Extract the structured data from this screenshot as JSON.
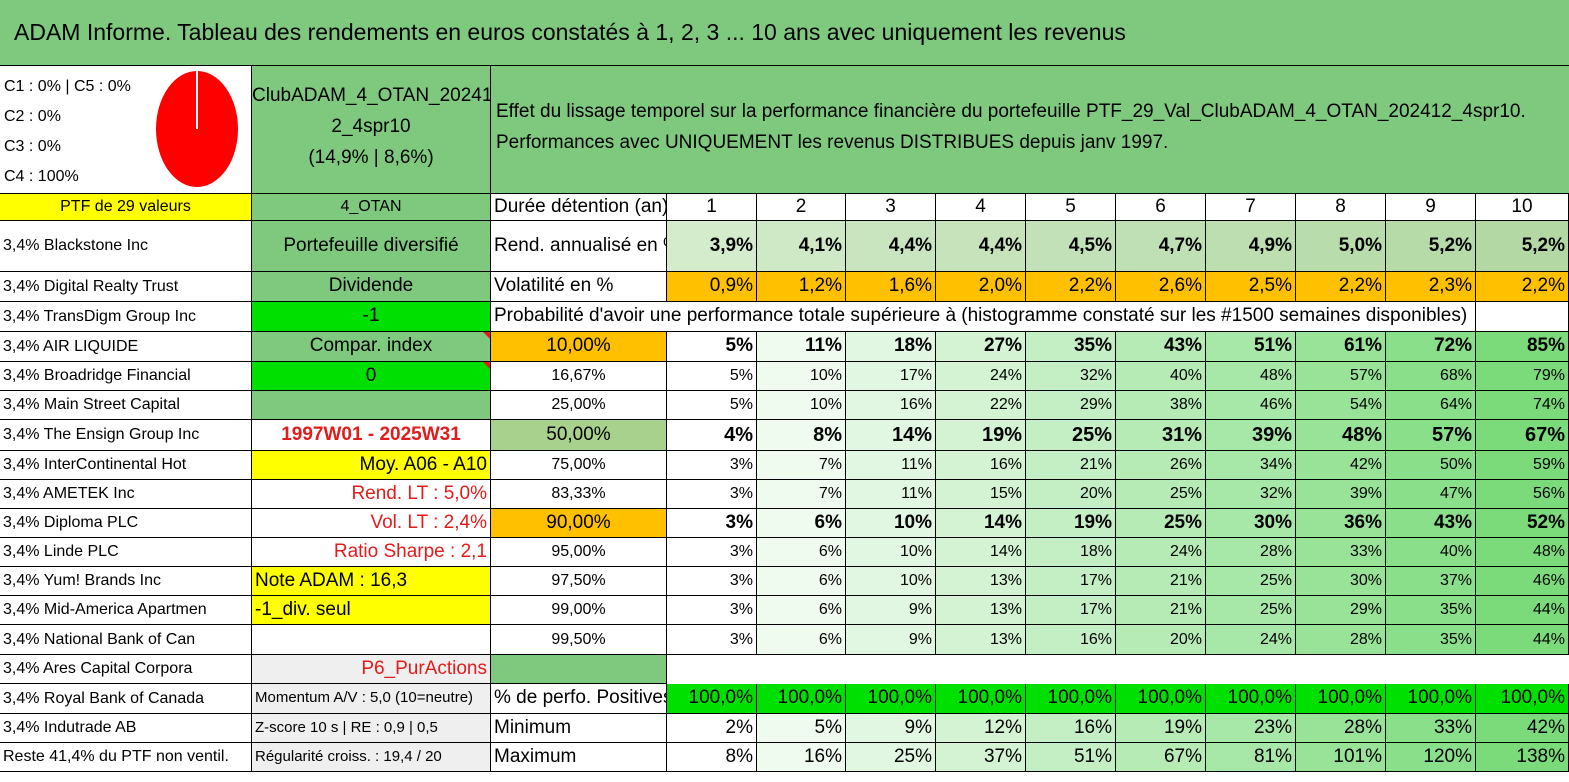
{
  "title": "ADAM Informe. Tableau des rendements en euros constatés à 1, 2, 3 ... 10 ans avec uniquement les revenus",
  "categories": [
    "C1 : 0% | C5 : 0%",
    "C2 : 0%",
    "C3 : 0%",
    "C4 : 100%"
  ],
  "pie": {
    "color": "#ff0000",
    "share_c4": 1.0
  },
  "portfolio": {
    "name_line1": "ClubADAM_4_OTAN_20241",
    "name_line2": "2_4spr10",
    "perf": "(14,9% | 8,6%)"
  },
  "description": {
    "line1": "Effet du lissage temporel sur la performance financière du portefeuille PTF_29_Val_ClubADAM_4_OTAN_202412_4spr10.",
    "line2": "Performances avec UNIQUEMENT les revenus DISTRIBUES depuis janv 1997."
  },
  "left_header": "PTF de 29 valeurs",
  "holdings": [
    "3,4% Blackstone Inc",
    "3,4% Digital Realty Trust",
    "3,4% TransDigm Group Inc",
    "3,4% AIR LIQUIDE",
    "3,4% Broadridge Financial",
    "3,4% Main Street Capital",
    "3,4% The Ensign Group Inc",
    "3,4% InterContinental Hot",
    "3,4% AMETEK Inc",
    "3,4% Diploma PLC",
    "3,4% Linde PLC",
    "3,4% Yum! Brands Inc",
    "3,4% Mid-America Apartmen",
    "3,4% National Bank of Can",
    "3,4% Ares Capital Corpora",
    "3,4% Royal Bank of Canada",
    "3,4% Indutrade AB",
    "Reste 41,4% du PTF non ventil."
  ],
  "info": [
    "4_OTAN",
    "Portefeuille diversifié",
    "Dividende",
    "-1",
    "Compar. index",
    "0",
    "",
    "1997W01 - 2025W31",
    "Moy. A06 - A10",
    "Rend. LT : 5,0%",
    "Vol. LT : 2,4%",
    "Ratio Sharpe : 2,1",
    "Note ADAM : 16,3",
    "-1_div. seul",
    "",
    "P6_PurActions",
    "Momentum A/V : 5,0 (10=neutre)",
    "Z-score 10 s | RE : 0,9 | 0,5",
    "Régularité croiss. : 19,4 / 20"
  ],
  "table": {
    "duration_label": "Durée détention (an)",
    "years": [
      "1",
      "2",
      "3",
      "4",
      "5",
      "6",
      "7",
      "8",
      "9",
      "10"
    ],
    "rend_label": "Rend. annualisé en %",
    "rend": [
      "3,9%",
      "4,1%",
      "4,4%",
      "4,4%",
      "4,5%",
      "4,7%",
      "4,9%",
      "5,0%",
      "5,2%",
      "5,2%"
    ],
    "vol_label": "Volatilité en %",
    "vol": [
      "0,9%",
      "1,2%",
      "1,6%",
      "2,0%",
      "2,2%",
      "2,6%",
      "2,5%",
      "2,2%",
      "2,3%",
      "2,2%"
    ],
    "prob_title": "Probabilité d'avoir une performance totale supérieure à (histogramme constaté sur les #1500 semaines disponibles)",
    "prob_rows": [
      {
        "label": "10,00%",
        "values": [
          "5%",
          "11%",
          "18%",
          "27%",
          "35%",
          "43%",
          "51%",
          "61%",
          "72%",
          "85%"
        ]
      },
      {
        "label": "16,67%",
        "values": [
          "5%",
          "10%",
          "17%",
          "24%",
          "32%",
          "40%",
          "48%",
          "57%",
          "68%",
          "79%"
        ]
      },
      {
        "label": "25,00%",
        "values": [
          "5%",
          "10%",
          "16%",
          "22%",
          "29%",
          "38%",
          "46%",
          "54%",
          "64%",
          "74%"
        ]
      },
      {
        "label": "50,00%",
        "values": [
          "4%",
          "8%",
          "14%",
          "19%",
          "25%",
          "31%",
          "39%",
          "48%",
          "57%",
          "67%"
        ]
      },
      {
        "label": "75,00%",
        "values": [
          "3%",
          "7%",
          "11%",
          "16%",
          "21%",
          "26%",
          "34%",
          "42%",
          "50%",
          "59%"
        ]
      },
      {
        "label": "83,33%",
        "values": [
          "3%",
          "7%",
          "11%",
          "15%",
          "20%",
          "25%",
          "32%",
          "39%",
          "47%",
          "56%"
        ]
      },
      {
        "label": "90,00%",
        "values": [
          "3%",
          "6%",
          "10%",
          "14%",
          "19%",
          "25%",
          "30%",
          "36%",
          "43%",
          "52%"
        ]
      },
      {
        "label": "95,00%",
        "values": [
          "3%",
          "6%",
          "10%",
          "14%",
          "18%",
          "24%",
          "28%",
          "33%",
          "40%",
          "48%"
        ]
      },
      {
        "label": "97,50%",
        "values": [
          "3%",
          "6%",
          "10%",
          "13%",
          "17%",
          "21%",
          "25%",
          "30%",
          "37%",
          "46%"
        ]
      },
      {
        "label": "99,00%",
        "values": [
          "3%",
          "6%",
          "9%",
          "13%",
          "17%",
          "21%",
          "25%",
          "29%",
          "35%",
          "44%"
        ]
      },
      {
        "label": "99,50%",
        "values": [
          "3%",
          "6%",
          "9%",
          "13%",
          "16%",
          "20%",
          "24%",
          "28%",
          "35%",
          "44%"
        ]
      }
    ],
    "pos_label": "% de perfo. Positives",
    "pos": [
      "100,0%",
      "100,0%",
      "100,0%",
      "100,0%",
      "100,0%",
      "100,0%",
      "100,0%",
      "100,0%",
      "100,0%",
      "100,0%"
    ],
    "min_label": "Minimum",
    "min": [
      "2%",
      "5%",
      "9%",
      "12%",
      "16%",
      "19%",
      "23%",
      "28%",
      "33%",
      "42%"
    ],
    "max_label": "Maximum",
    "max": [
      "8%",
      "16%",
      "25%",
      "37%",
      "51%",
      "67%",
      "81%",
      "101%",
      "120%",
      "138%"
    ]
  }
}
